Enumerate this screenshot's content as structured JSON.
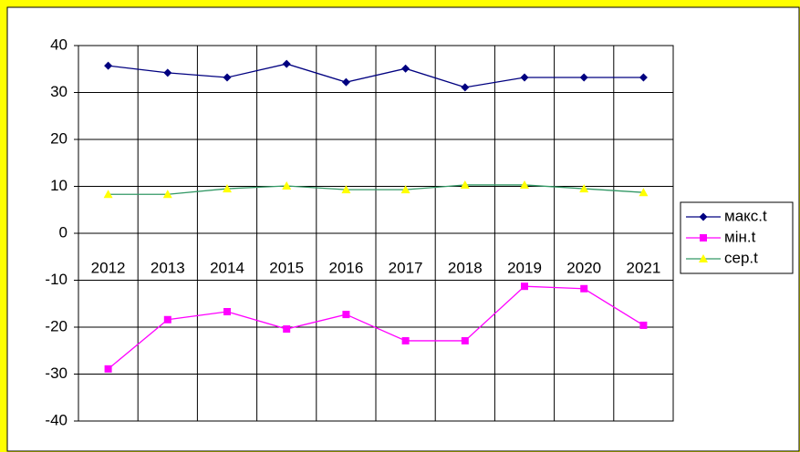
{
  "chart_data": {
    "type": "line",
    "categories": [
      "2012",
      "2013",
      "2014",
      "2015",
      "2016",
      "2017",
      "2018",
      "2019",
      "2020",
      "2021"
    ],
    "series": [
      {
        "name": "макс.t",
        "color": "#000080",
        "marker": "diamond",
        "marker_color": "#000080",
        "values": [
          35.7,
          34.2,
          33.2,
          36.1,
          32.2,
          35.1,
          31.1,
          33.2,
          33.2,
          33.2
        ]
      },
      {
        "name": "мін.t",
        "color": "#ff00ff",
        "marker": "square",
        "marker_color": "#ff00ff",
        "values": [
          -28.9,
          -18.4,
          -16.7,
          -20.4,
          -17.3,
          -22.9,
          -22.9,
          -11.3,
          -11.8,
          -19.6
        ]
      },
      {
        "name": "сер.t",
        "color": "#339966",
        "marker": "triangle",
        "marker_color": "#ffff00",
        "values": [
          8.3,
          8.3,
          9.5,
          10.1,
          9.3,
          9.3,
          10.3,
          10.3,
          9.5,
          8.7
        ]
      }
    ],
    "ylim": [
      -40,
      40
    ],
    "yticks": [
      -40,
      -30,
      -20,
      -10,
      0,
      10,
      20,
      30,
      40
    ],
    "grid": true,
    "legend": "right"
  }
}
